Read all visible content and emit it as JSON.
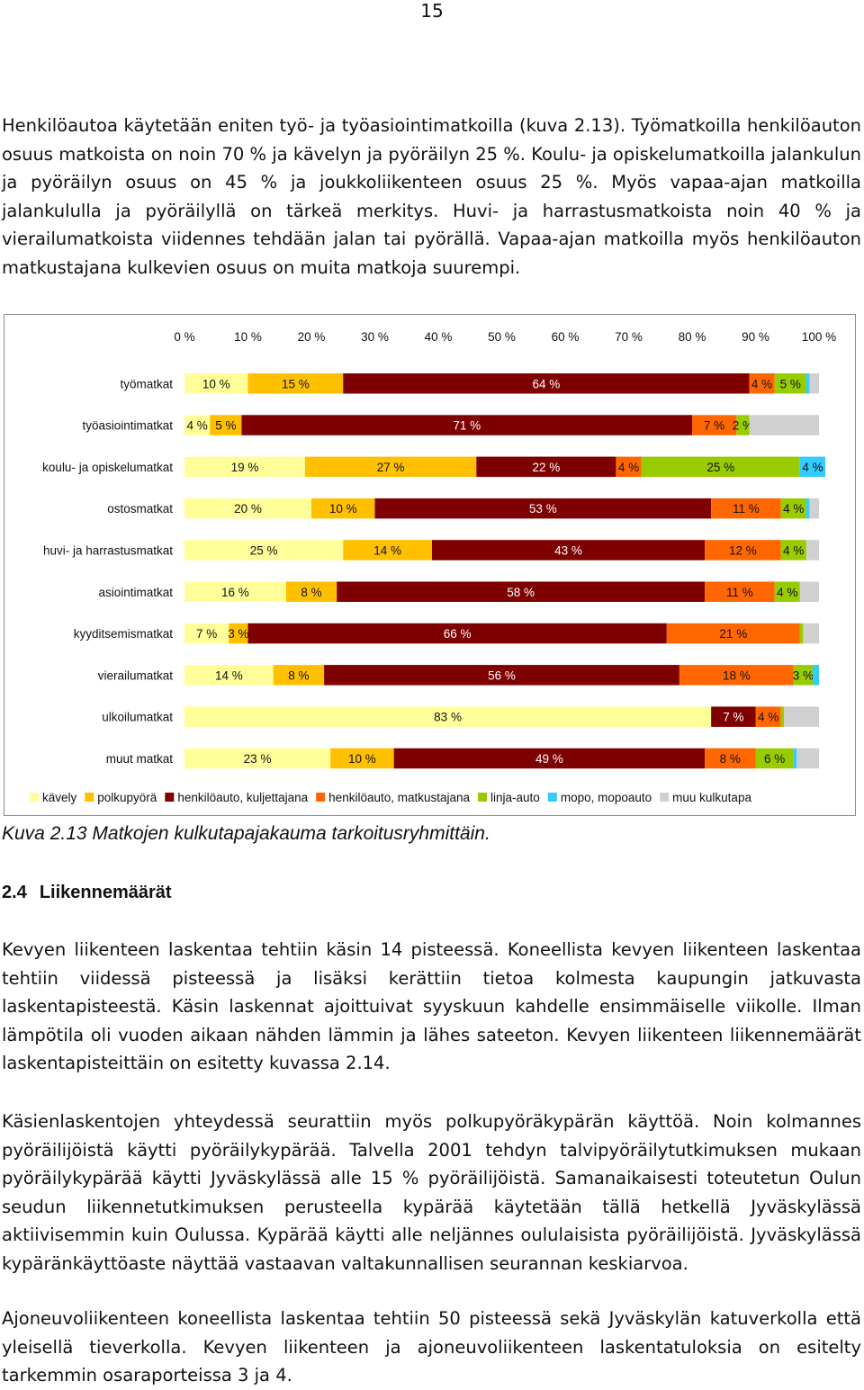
{
  "page_number": "15",
  "intro_text": "Henkilöautoa käytetään eniten työ- ja työasiointimatkoilla (kuva 2.13). Työmatkoilla henkilöauton osuus matkoista on noin 70 % ja kävelyn ja pyöräilyn 25 %. Koulu- ja opiskelumatkoilla jalankulun ja pyöräilyn osuus on 45 % ja joukkoliikenteen osuus 25 %. Myös vapaa-ajan matkoilla jalankululla ja pyöräilyllä on tärkeä merkitys. Huvi- ja harrastusmatkoista noin 40 % ja vierailumatkoista viidennes tehdään jalan tai pyörällä. Vapaa-ajan matkoilla myös henkilöauton matkustajana kulkevien osuus on muita matkoja suurempi.",
  "chart_data": {
    "type": "bar",
    "orientation": "horizontal",
    "stacked": "percent",
    "title": "",
    "xlabel": "",
    "ylabel": "",
    "xlim": [
      0,
      100
    ],
    "x_ticks": [
      "0 %",
      "10 %",
      "20 %",
      "30 %",
      "40 %",
      "50 %",
      "60 %",
      "70 %",
      "80 %",
      "90 %",
      "100 %"
    ],
    "legend_position": "bottom",
    "categories": [
      "työmatkat",
      "työasiointimatkat",
      "koulu- ja opiskelumatkat",
      "ostosmatkat",
      "huvi- ja harrastusmatkat",
      "asiointimatkat",
      "kyyditsemismatkat",
      "vierailumatkat",
      "ulkoilumatkat",
      "muut matkat"
    ],
    "series": [
      {
        "name": "kävely",
        "color": "#ffff99",
        "values": [
          10,
          4,
          19,
          20,
          25,
          16,
          7,
          14,
          83,
          23
        ]
      },
      {
        "name": "polkupyörä",
        "color": "#ffc000",
        "values": [
          15,
          5,
          27,
          10,
          14,
          8,
          3,
          8,
          0,
          10
        ]
      },
      {
        "name": "henkilöauto, kuljettajana",
        "color": "#7f0000",
        "values": [
          64,
          71,
          22,
          53,
          43,
          58,
          66,
          56,
          7,
          49
        ]
      },
      {
        "name": "henkilöauto, matkustajana",
        "color": "#ff6600",
        "values": [
          4,
          7,
          4,
          11,
          12,
          11,
          21,
          18,
          4,
          8
        ]
      },
      {
        "name": "linja-auto",
        "color": "#99cc00",
        "values": [
          5,
          2,
          25,
          4,
          4,
          4,
          0.5,
          3,
          0.5,
          6
        ]
      },
      {
        "name": "mopo, mopoauto",
        "color": "#33ccff",
        "values": [
          0.5,
          0,
          4,
          0.5,
          0,
          0,
          0,
          1,
          0,
          0.5
        ]
      },
      {
        "name": "muu kulkutapa",
        "color": "#d0d0d0",
        "values": [
          1.5,
          11,
          0,
          1.5,
          2,
          3,
          2.5,
          0,
          5.5,
          3.5
        ]
      }
    ],
    "data_labels": [
      [
        "10 %",
        "15 %",
        "64 %",
        "4 %",
        "5 %",
        "",
        ""
      ],
      [
        "4 %",
        "5 %",
        "71 %",
        "7 %",
        "2 %",
        "",
        ""
      ],
      [
        "19 %",
        "27 %",
        "22 %",
        "4 %",
        "25 %",
        "4 %",
        ""
      ],
      [
        "20 %",
        "10 %",
        "53 %",
        "11 %",
        "4 %",
        "",
        ""
      ],
      [
        "25 %",
        "14 %",
        "43 %",
        "12 %",
        "4 %",
        "",
        ""
      ],
      [
        "16 %",
        "8 %",
        "58 %",
        "11 %",
        "4 %",
        "",
        ""
      ],
      [
        "7 %",
        "3 %",
        "66 %",
        "21 %",
        "",
        "",
        ""
      ],
      [
        "14 %",
        "8 %",
        "56 %",
        "18 %",
        "3 %",
        "",
        ""
      ],
      [
        "83 %",
        "",
        "7 %",
        "4 %",
        "",
        "",
        ""
      ],
      [
        "23 %",
        "10 %",
        "49 %",
        "8 %",
        "6 %",
        "",
        ""
      ]
    ]
  },
  "caption": "Kuva 2.13 Matkojen kulkutapajakauma tarkoitusryhmittäin.",
  "section": {
    "number": "2.4",
    "title": "Liikennemäärät"
  },
  "paragraphs": [
    "Kevyen liikenteen laskentaa tehtiin käsin 14 pisteessä. Koneellista kevyen liikenteen laskentaa tehtiin viidessä pisteessä ja lisäksi kerättiin tietoa kolmesta kaupungin jatkuvasta laskentapisteestä. Käsin laskennat ajoittuivat syyskuun kahdelle ensimmäiselle viikolle. Ilman lämpötila oli vuoden aikaan nähden lämmin ja lähes sateeton. Kevyen liikenteen liikennemäärät laskentapisteittäin on esitetty kuvassa 2.14.",
    "Käsienlaskentojen yhteydessä seurattiin myös polkupyöräkypärän käyttöä. Noin kolmannes pyöräilijöistä käytti pyöräilykypärää. Talvella 2001 tehdyn talvipyöräilytutkimuksen mukaan pyöräilykypärää käytti Jyväskylässä alle 15 % pyöräilijöistä. Samanaikaisesti toteutetun Oulun seudun liikennetutkimuksen perusteella kypärää käytetään tällä hetkellä Jyväskylässä aktiivisemmin kuin Oulussa. Kypärää käytti alle neljännes oululaisista pyöräilijöistä. Jyväskylässä kypäränkäyttöaste näyttää vastaavan valtakunnallisen seurannan keskiarvoa.",
    "Ajoneuvoliikenteen koneellista laskentaa tehtiin 50 pisteessä sekä Jyväskylän katuverkolla että yleisellä tieverkolla. Kevyen liikenteen ja ajoneuvoliikenteen laskentatuloksia on esitelty tarkemmin osaraporteissa 3 ja 4."
  ]
}
